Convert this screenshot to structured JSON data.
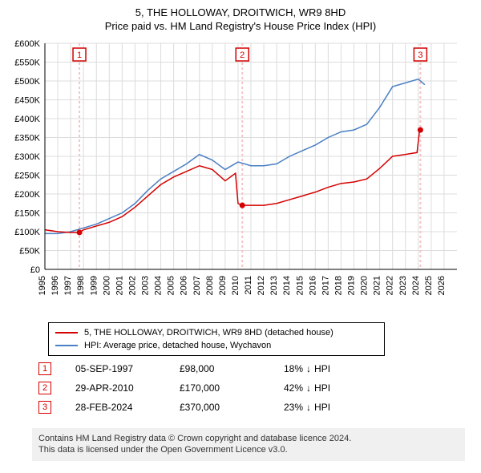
{
  "title_line1": "5, THE HOLLOWAY, DROITWICH, WR9 8HD",
  "title_line2": "Price paid vs. HM Land Registry's House Price Index (HPI)",
  "colors": {
    "series_property": "#d40000",
    "series_hpi": "#4a7fc4",
    "grid": "#dcdcdc",
    "axis": "#000000",
    "sale_vline": "#f6c4c4",
    "sale_marker_fill": "#d40000",
    "background": "#ffffff",
    "footer_bg": "#f0f0f0"
  },
  "chart": {
    "type": "line",
    "x_min": 1995,
    "x_max": 2027,
    "y_min": 0,
    "y_max": 600000,
    "y_ticks": [
      0,
      50000,
      100000,
      150000,
      200000,
      250000,
      300000,
      350000,
      400000,
      450000,
      500000,
      550000,
      600000
    ],
    "y_tick_labels": [
      "£0",
      "£50K",
      "£100K",
      "£150K",
      "£200K",
      "£250K",
      "£300K",
      "£350K",
      "£400K",
      "£450K",
      "£500K",
      "£550K",
      "£600K"
    ],
    "x_ticks": [
      1995,
      1996,
      1997,
      1998,
      1999,
      2000,
      2001,
      2002,
      2003,
      2004,
      2005,
      2006,
      2007,
      2008,
      2009,
      2010,
      2011,
      2012,
      2013,
      2014,
      2015,
      2016,
      2017,
      2018,
      2019,
      2020,
      2021,
      2022,
      2023,
      2024,
      2025,
      2026
    ],
    "line_width": 1.5,
    "grid_width": 1
  },
  "series_hpi": [
    [
      1995,
      95000
    ],
    [
      1996,
      95000
    ],
    [
      1997,
      100000
    ],
    [
      1998,
      110000
    ],
    [
      1999,
      120000
    ],
    [
      2000,
      135000
    ],
    [
      2001,
      150000
    ],
    [
      2002,
      175000
    ],
    [
      2003,
      210000
    ],
    [
      2004,
      240000
    ],
    [
      2005,
      260000
    ],
    [
      2006,
      280000
    ],
    [
      2007,
      305000
    ],
    [
      2008,
      290000
    ],
    [
      2009,
      265000
    ],
    [
      2010,
      285000
    ],
    [
      2011,
      275000
    ],
    [
      2012,
      275000
    ],
    [
      2013,
      280000
    ],
    [
      2014,
      300000
    ],
    [
      2015,
      315000
    ],
    [
      2016,
      330000
    ],
    [
      2017,
      350000
    ],
    [
      2018,
      365000
    ],
    [
      2019,
      370000
    ],
    [
      2020,
      385000
    ],
    [
      2021,
      430000
    ],
    [
      2022,
      485000
    ],
    [
      2023,
      495000
    ],
    [
      2024,
      505000
    ],
    [
      2024.5,
      490000
    ]
  ],
  "series_property": [
    [
      1995,
      105000
    ],
    [
      1996,
      100000
    ],
    [
      1997,
      98000
    ],
    [
      1997.68,
      98000
    ],
    [
      1998,
      105000
    ],
    [
      1999,
      115000
    ],
    [
      2000,
      125000
    ],
    [
      2001,
      140000
    ],
    [
      2002,
      165000
    ],
    [
      2003,
      195000
    ],
    [
      2004,
      225000
    ],
    [
      2005,
      245000
    ],
    [
      2006,
      260000
    ],
    [
      2007,
      275000
    ],
    [
      2008,
      265000
    ],
    [
      2009,
      235000
    ],
    [
      2009.8,
      255000
    ],
    [
      2010.0,
      175000
    ],
    [
      2010.33,
      170000
    ],
    [
      2011,
      170000
    ],
    [
      2012,
      170000
    ],
    [
      2013,
      175000
    ],
    [
      2014,
      185000
    ],
    [
      2015,
      195000
    ],
    [
      2016,
      205000
    ],
    [
      2017,
      218000
    ],
    [
      2018,
      228000
    ],
    [
      2019,
      232000
    ],
    [
      2020,
      240000
    ],
    [
      2021,
      268000
    ],
    [
      2022,
      300000
    ],
    [
      2023,
      305000
    ],
    [
      2023.9,
      310000
    ],
    [
      2024.1,
      370000
    ],
    [
      2024.16,
      370000
    ]
  ],
  "sales": [
    {
      "n": "1",
      "x": 1997.68,
      "date": "05-SEP-1997",
      "price": "£98,000",
      "diff_pct": "18%",
      "diff_dir": "down",
      "diff_suffix": "HPI"
    },
    {
      "n": "2",
      "x": 2010.33,
      "date": "29-APR-2010",
      "price": "£170,000",
      "diff_pct": "42%",
      "diff_dir": "down",
      "diff_suffix": "HPI"
    },
    {
      "n": "3",
      "x": 2024.16,
      "date": "28-FEB-2024",
      "price": "£370,000",
      "diff_pct": "23%",
      "diff_dir": "down",
      "diff_suffix": "HPI"
    }
  ],
  "sale_marker_radius": 3.5,
  "legend": {
    "item1": "5, THE HOLLOWAY, DROITWICH, WR9 8HD (detached house)",
    "item2": "HPI: Average price, detached house, Wychavon"
  },
  "footer_line1": "Contains HM Land Registry data © Crown copyright and database licence 2024.",
  "footer_line2": "This data is licensed under the Open Government Licence v3.0."
}
